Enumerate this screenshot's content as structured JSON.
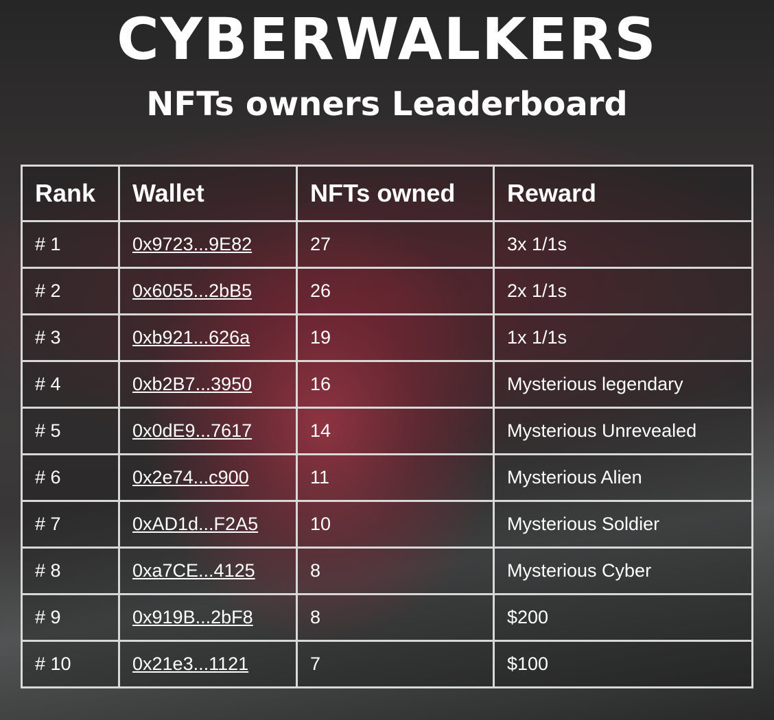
{
  "header": {
    "title": "CYBERWALKERS",
    "subtitle": "NFTs owners Leaderboard"
  },
  "table": {
    "columns": [
      "Rank",
      "Wallet",
      "NFTs owned",
      "Reward"
    ],
    "rows": [
      [
        "# 1",
        "0x9723...9E82",
        27,
        "3x 1/1s"
      ],
      [
        "# 2",
        "0x6055...2bB5",
        26,
        "2x 1/1s"
      ],
      [
        "# 3",
        "0xb921...626a",
        19,
        "1x 1/1s"
      ],
      [
        "# 4",
        "0xb2B7...3950",
        16,
        "Mysterious legendary"
      ],
      [
        "# 5",
        "0x0dE9...7617",
        14,
        "Mysterious Unrevealed"
      ],
      [
        "# 6",
        "0x2e74...c900",
        11,
        "Mysterious Alien"
      ],
      [
        "# 7",
        "0xAD1d...F2A5",
        10,
        "Mysterious Soldier"
      ],
      [
        "# 8",
        "0xa7CE...4125",
        8,
        "Mysterious Cyber"
      ],
      [
        "# 9",
        "0x919B...2bF8",
        8,
        "$200"
      ],
      [
        "# 10",
        "0x21e3...1121",
        7,
        "$100"
      ]
    ]
  }
}
